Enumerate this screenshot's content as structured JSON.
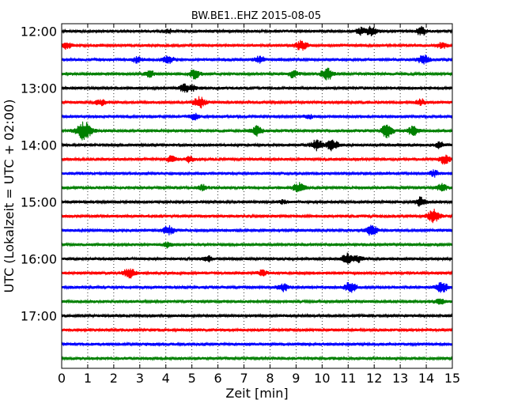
{
  "chart_data": {
    "type": "line",
    "title": "BW.BE1..EHZ 2015-08-05",
    "xlabel": "Zeit  [min]",
    "ylabel": "UTC (Lokalzeit = UTC + 02:00)",
    "xlim": [
      0,
      15
    ],
    "x_ticks": [
      "0",
      "1",
      "2",
      "3",
      "4",
      "5",
      "6",
      "7",
      "8",
      "9",
      "10",
      "11",
      "12",
      "13",
      "14",
      "15"
    ],
    "y_ticks": [
      "12:00",
      "13:00",
      "14:00",
      "15:00",
      "16:00",
      "17:00"
    ],
    "grid": "vertical dotted",
    "colors": [
      "#000000",
      "#ff0000",
      "#0000ff",
      "#008000"
    ],
    "traces": [
      {
        "start": "12:00",
        "events": [
          {
            "t": 4.1,
            "a": 0.2
          },
          {
            "t": 11.5,
            "a": 0.35
          },
          {
            "t": 11.9,
            "a": 0.5
          },
          {
            "t": 13.8,
            "a": 0.45
          }
        ]
      },
      {
        "start": "12:15",
        "events": [
          {
            "t": 0.2,
            "a": 0.4
          },
          {
            "t": 9.2,
            "a": 0.55
          },
          {
            "t": 14.6,
            "a": 0.3
          }
        ]
      },
      {
        "start": "12:30",
        "events": [
          {
            "t": 2.9,
            "a": 0.3
          },
          {
            "t": 4.1,
            "a": 0.4
          },
          {
            "t": 7.6,
            "a": 0.4
          },
          {
            "t": 13.9,
            "a": 0.5
          }
        ]
      },
      {
        "start": "12:45",
        "events": [
          {
            "t": 3.4,
            "a": 0.3
          },
          {
            "t": 5.1,
            "a": 0.5
          },
          {
            "t": 8.9,
            "a": 0.4
          },
          {
            "t": 10.2,
            "a": 0.65
          }
        ]
      },
      {
        "start": "13:00",
        "events": [
          {
            "t": 4.7,
            "a": 0.4
          },
          {
            "t": 5.0,
            "a": 0.3
          }
        ]
      },
      {
        "start": "13:15",
        "events": [
          {
            "t": 1.5,
            "a": 0.3
          },
          {
            "t": 5.3,
            "a": 0.6
          },
          {
            "t": 13.8,
            "a": 0.3
          }
        ]
      },
      {
        "start": "13:30",
        "events": [
          {
            "t": 5.1,
            "a": 0.3
          },
          {
            "t": 9.5,
            "a": 0.2
          }
        ]
      },
      {
        "start": "13:45",
        "events": [
          {
            "t": 0.85,
            "a": 1.0
          },
          {
            "t": 7.5,
            "a": 0.5
          },
          {
            "t": 12.5,
            "a": 0.7
          },
          {
            "t": 13.5,
            "a": 0.5
          }
        ]
      },
      {
        "start": "14:00",
        "events": [
          {
            "t": 9.8,
            "a": 0.6
          },
          {
            "t": 10.4,
            "a": 0.6
          },
          {
            "t": 14.5,
            "a": 0.3
          }
        ]
      },
      {
        "start": "14:15",
        "events": [
          {
            "t": 4.2,
            "a": 0.3
          },
          {
            "t": 4.9,
            "a": 0.3
          },
          {
            "t": 14.7,
            "a": 0.5
          }
        ]
      },
      {
        "start": "14:30",
        "events": [
          {
            "t": 14.3,
            "a": 0.3
          }
        ]
      },
      {
        "start": "14:45",
        "events": [
          {
            "t": 5.4,
            "a": 0.3
          },
          {
            "t": 9.1,
            "a": 0.5
          },
          {
            "t": 14.6,
            "a": 0.4
          }
        ]
      },
      {
        "start": "15:00",
        "events": [
          {
            "t": 8.5,
            "a": 0.2
          },
          {
            "t": 13.8,
            "a": 0.5
          }
        ]
      },
      {
        "start": "15:15",
        "events": [
          {
            "t": 14.3,
            "a": 0.75
          }
        ]
      },
      {
        "start": "15:30",
        "events": [
          {
            "t": 4.1,
            "a": 0.5
          },
          {
            "t": 11.9,
            "a": 0.55
          }
        ]
      },
      {
        "start": "15:45",
        "events": [
          {
            "t": 4.1,
            "a": 0.3
          }
        ]
      },
      {
        "start": "16:00",
        "events": [
          {
            "t": 5.6,
            "a": 0.3
          },
          {
            "t": 11.0,
            "a": 0.6
          },
          {
            "t": 11.4,
            "a": 0.3
          }
        ]
      },
      {
        "start": "16:15",
        "events": [
          {
            "t": 2.6,
            "a": 0.6
          },
          {
            "t": 7.7,
            "a": 0.3
          }
        ]
      },
      {
        "start": "16:30",
        "events": [
          {
            "t": 8.5,
            "a": 0.4
          },
          {
            "t": 11.1,
            "a": 0.6
          },
          {
            "t": 14.6,
            "a": 0.6
          }
        ]
      },
      {
        "start": "16:45",
        "events": [
          {
            "t": 14.5,
            "a": 0.3
          }
        ]
      },
      {
        "start": "17:00",
        "events": []
      },
      {
        "start": "17:15",
        "events": []
      },
      {
        "start": "17:30",
        "events": []
      },
      {
        "start": "17:45",
        "events": []
      }
    ]
  }
}
